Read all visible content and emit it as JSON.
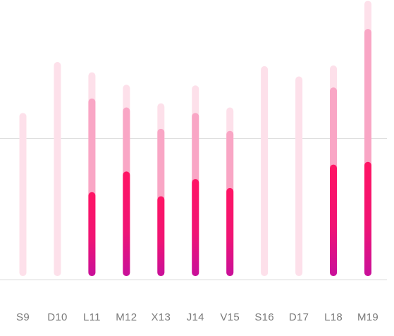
{
  "chart_data": {
    "type": "bar",
    "stacked": false,
    "overlapping_layers": true,
    "categories": [
      "S9",
      "D10",
      "L11",
      "M12",
      "X13",
      "J14",
      "V15",
      "S16",
      "D17",
      "L18",
      "M19"
    ],
    "series": [
      {
        "values": [
          237,
          311,
          296,
          278,
          251,
          277,
          245,
          305,
          290,
          306,
          400
        ],
        "color": "#fde0ea"
      },
      {
        "values": [
          null,
          null,
          258,
          245,
          214,
          237,
          211,
          null,
          null,
          274,
          359
        ],
        "color": "#f9a6c5"
      },
      {
        "values": [
          null,
          null,
          122,
          152,
          116,
          141,
          128,
          null,
          null,
          162,
          166
        ],
        "color_top": "#ff1464",
        "color_bottom": "#c8109a"
      }
    ],
    "ylim": [
      0,
      400
    ],
    "gridlines": [
      0,
      200
    ],
    "grid": true,
    "legend": "none",
    "xlabel": "",
    "ylabel": ""
  }
}
